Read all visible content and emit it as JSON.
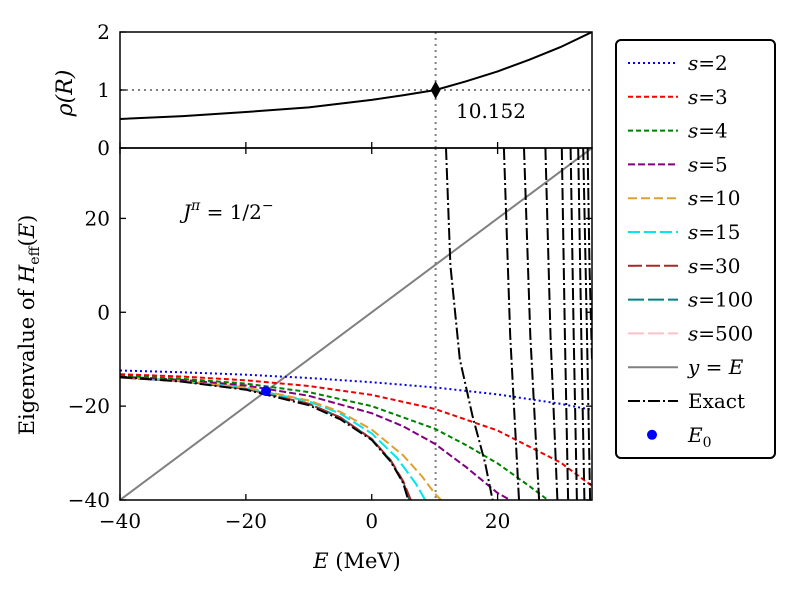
{
  "chart_data": [
    {
      "type": "line",
      "panel": "top",
      "ylabel": "ρ(R)",
      "xlim": [
        -40,
        35
      ],
      "ylim": [
        0,
        2
      ],
      "yticks": [
        0,
        1,
        2
      ],
      "ytick_labels": [
        "0",
        "1",
        "2"
      ],
      "series": [
        {
          "name": "rho",
          "x": [
            -40,
            -30,
            -20,
            -10,
            0,
            5,
            10.152,
            15,
            20,
            25,
            30,
            35
          ],
          "y": [
            0.5,
            0.55,
            0.62,
            0.7,
            0.83,
            0.91,
            1.0,
            1.15,
            1.32,
            1.52,
            1.74,
            2.0
          ]
        }
      ],
      "marker": {
        "x": 10.152,
        "y": 1
      },
      "annotation": "10.152",
      "hline": 1,
      "vline": 10.152
    },
    {
      "type": "line",
      "panel": "bottom",
      "xlabel": "E (MeV)",
      "ylabel": "Eigenvalue of H_eff(E)",
      "xlim": [
        -40,
        35
      ],
      "ylim": [
        -40,
        35
      ],
      "xticks": [
        -40,
        -20,
        0,
        20
      ],
      "xtick_labels": [
        "−40",
        "−20",
        "0",
        "20"
      ],
      "yticks": [
        -40,
        -20,
        0,
        20
      ],
      "ytick_labels": [
        "−40",
        "−20",
        "0",
        "20"
      ],
      "annotation": "J^π = 1/2^−",
      "vline": 10.152,
      "series": [
        {
          "name": "s=2",
          "color": "#0000ee",
          "dash": "2,3",
          "x": [
            -40,
            -30,
            -20,
            -10,
            0,
            10,
            20,
            30,
            35
          ],
          "y": [
            -12.4,
            -12.8,
            -13.3,
            -14.0,
            -14.9,
            -16.0,
            -17.5,
            -19.5,
            -20.8
          ]
        },
        {
          "name": "s=3",
          "color": "#ee0000",
          "dash": "5,3",
          "x": [
            -40,
            -30,
            -20,
            -10,
            0,
            10,
            20,
            30,
            35
          ],
          "y": [
            -13.2,
            -13.7,
            -14.5,
            -15.7,
            -17.6,
            -20.6,
            -25.2,
            -32.0,
            -37.0
          ]
        },
        {
          "name": "s=4",
          "color": "#008000",
          "dash": "5,3",
          "x": [
            -40,
            -30,
            -20,
            -10,
            0,
            10,
            15,
            20,
            25,
            28
          ],
          "y": [
            -13.5,
            -14.2,
            -15.2,
            -17.0,
            -20.0,
            -24.8,
            -28.3,
            -32.2,
            -37.0,
            -40.0
          ]
        },
        {
          "name": "s=5",
          "color": "#800080",
          "dash": "7,3",
          "x": [
            -40,
            -30,
            -20,
            -10,
            0,
            5,
            10,
            15,
            20,
            22
          ],
          "y": [
            -13.7,
            -14.4,
            -15.6,
            -17.8,
            -21.5,
            -24.3,
            -28.0,
            -33.0,
            -38.5,
            -40.0
          ]
        },
        {
          "name": "s=10",
          "color": "#e0a030",
          "dash": "9,4",
          "x": [
            -40,
            -30,
            -20,
            -10,
            -5,
            0,
            5,
            8,
            10,
            11
          ],
          "y": [
            -13.8,
            -14.6,
            -16.0,
            -18.8,
            -21.2,
            -25.0,
            -30.5,
            -35.0,
            -38.6,
            -40.0
          ]
        },
        {
          "name": "s=15",
          "color": "#00e5ee",
          "dash": "12,4",
          "x": [
            -40,
            -30,
            -20,
            -10,
            -5,
            0,
            4,
            7,
            8.5
          ],
          "y": [
            -13.8,
            -14.6,
            -16.1,
            -19.0,
            -21.6,
            -25.8,
            -31.0,
            -36.5,
            -40.0
          ]
        },
        {
          "name": "s=30",
          "color": "#a52a2a",
          "dash": "14,4",
          "x": [
            -40,
            -30,
            -20,
            -10,
            -5,
            0,
            3,
            5,
            6.2
          ],
          "y": [
            -13.9,
            -14.7,
            -16.3,
            -19.5,
            -22.4,
            -27.0,
            -31.5,
            -36.0,
            -40.0
          ]
        },
        {
          "name": "s=100",
          "color": "#008080",
          "dash": "16,4",
          "x": [
            -40,
            -30,
            -20,
            -10,
            -5,
            0,
            3,
            5,
            6.0
          ],
          "y": [
            -13.9,
            -14.7,
            -16.3,
            -19.5,
            -22.4,
            -27.0,
            -31.6,
            -36.2,
            -40.0
          ]
        },
        {
          "name": "s=500",
          "color": "#ffc0cb",
          "dash": "16,4",
          "x": [
            -40,
            -30,
            -20,
            -10,
            -5,
            0,
            3,
            5,
            6.0
          ],
          "y": [
            -13.9,
            -14.7,
            -16.3,
            -19.5,
            -22.4,
            -27.0,
            -31.6,
            -36.2,
            -40.0
          ]
        },
        {
          "name": "y = E",
          "color": "#808080",
          "dash": "",
          "x": [
            -40,
            35
          ],
          "y": [
            -40,
            35
          ]
        },
        {
          "name": "Exact",
          "color": "#000000",
          "dash": "12,3,2,3",
          "x": [
            -40,
            -30,
            -20,
            -10,
            -5,
            0,
            3,
            5,
            5.8
          ],
          "y": [
            -13.8,
            -14.8,
            -16.5,
            -19.8,
            -22.8,
            -27.2,
            -31.8,
            -36.4,
            -40.0
          ]
        }
      ],
      "exact_branches": [
        {
          "x": [
            11.8,
            12.5,
            14,
            16,
            18,
            19.2
          ],
          "y": [
            35,
            10,
            -10,
            -22,
            -32,
            -40
          ]
        },
        {
          "x": [
            21.0,
            22.0,
            23.4
          ],
          "y": [
            35,
            -5,
            -40
          ]
        },
        {
          "x": [
            24.2,
            25.2,
            26.6
          ],
          "y": [
            35,
            -5,
            -40
          ]
        },
        {
          "x": [
            27.6,
            28.4,
            29.5
          ],
          "y": [
            35,
            -5,
            -40
          ]
        },
        {
          "x": [
            30.2,
            30.7,
            31.2
          ],
          "y": [
            35,
            -5,
            -40
          ]
        },
        {
          "x": [
            31.6,
            32.1,
            32.6
          ],
          "y": [
            35,
            -5,
            -40
          ]
        },
        {
          "x": [
            32.8,
            33.3,
            33.8
          ],
          "y": [
            35,
            -5,
            -40
          ]
        },
        {
          "x": [
            33.6,
            34.2,
            34.7
          ],
          "y": [
            35,
            -5,
            -40
          ]
        },
        {
          "x": [
            34.3,
            34.6,
            35
          ],
          "y": [
            35,
            10,
            -10
          ]
        }
      ],
      "E0": {
        "name": "E_0",
        "x": -16.8,
        "y": -16.8,
        "color": "#0000ff"
      }
    }
  ],
  "legend": {
    "placement": "right",
    "entries": [
      {
        "prefix": "s",
        "op": "=",
        "val": "2",
        "color": "#0000ee",
        "dash": "2,3"
      },
      {
        "prefix": "s",
        "op": "=",
        "val": "3",
        "color": "#ee0000",
        "dash": "5,3"
      },
      {
        "prefix": "s",
        "op": "=",
        "val": "4",
        "color": "#008000",
        "dash": "5,3"
      },
      {
        "prefix": "s",
        "op": "=",
        "val": "5",
        "color": "#800080",
        "dash": "7,3"
      },
      {
        "prefix": "s",
        "op": "=",
        "val": "10",
        "color": "#e0a030",
        "dash": "9,4"
      },
      {
        "prefix": "s",
        "op": "=",
        "val": "15",
        "color": "#00e5ee",
        "dash": "12,4"
      },
      {
        "prefix": "s",
        "op": "=",
        "val": "30",
        "color": "#a52a2a",
        "dash": "14,4"
      },
      {
        "prefix": "s",
        "op": "=",
        "val": "100",
        "color": "#008080",
        "dash": "16,4"
      },
      {
        "prefix": "s",
        "op": "=",
        "val": "500",
        "color": "#ffc0cb",
        "dash": "16,4"
      },
      {
        "prefix": "y",
        "op": " = ",
        "val": "E",
        "color": "#808080",
        "dash": ""
      },
      {
        "prefix": "",
        "op": "",
        "val": "Exact",
        "color": "#000000",
        "dash": "12,3,2,3"
      },
      {
        "prefix": "E",
        "op": "",
        "val": "0",
        "color": "#0000ff",
        "marker": true
      }
    ]
  }
}
